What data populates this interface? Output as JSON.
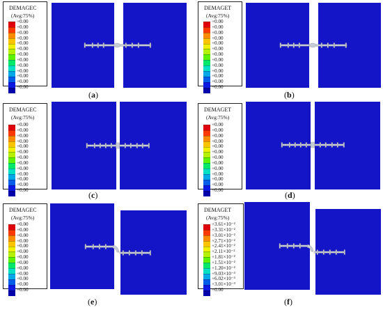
{
  "colors": {
    "mesh_blue": "#1515c8",
    "connector_gray": "#c8ccd6",
    "scale": [
      "#e0000b",
      "#ff3a00",
      "#ff8c00",
      "#ffc400",
      "#f0f000",
      "#b4f000",
      "#5cf200",
      "#00e86a",
      "#00e0c4",
      "#00a8e8",
      "#005ee8",
      "#0a18e4",
      "#0000a8"
    ]
  },
  "panels": [
    {
      "caption_label": "a",
      "legend_title": "DEMAGEC",
      "legend_sub": "(Avg:75%)",
      "legend_values": [
        "+0.00",
        "+0.00",
        "+0.00",
        "+0.00",
        "+0.00",
        "+0.00",
        "+0.00",
        "+0.00",
        "+0.00",
        "+0.00",
        "+0.00",
        "+0.00",
        "+0.00"
      ]
    },
    {
      "caption_label": "b",
      "legend_title": "DEMAGET",
      "legend_sub": "(Avg:75%)",
      "legend_values": [
        "+0.00",
        "+0.00",
        "+0.00",
        "+0.00",
        "+0.00",
        "+0.00",
        "+0.00",
        "+0.00",
        "+0.00",
        "+0.00",
        "+0.00",
        "+0.00",
        "+0.00"
      ]
    },
    {
      "caption_label": "c",
      "legend_title": "DEMAGEC",
      "legend_sub": "(Avg:75%)",
      "legend_values": [
        "+0.00",
        "+0.00",
        "+0.00",
        "+0.00",
        "+0.00",
        "+0.00",
        "+0.00",
        "+0.00",
        "+0.00",
        "+0.00",
        "+0.00",
        "+0.00",
        "+0.00"
      ]
    },
    {
      "caption_label": "d",
      "legend_title": "DEMAGET",
      "legend_sub": "(Avg:75%)",
      "legend_values": [
        "+0.00",
        "+0.00",
        "+0.00",
        "+0.00",
        "+0.00",
        "+0.00",
        "+0.00",
        "+0.00",
        "+0.00",
        "+0.00",
        "+0.00",
        "+0.00",
        "+0.00"
      ]
    },
    {
      "caption_label": "e",
      "legend_title": "DEMAGEC",
      "legend_sub": "(Avg:75%)",
      "legend_values": [
        "+0.00",
        "+0.00",
        "+0.00",
        "+0.00",
        "+0.00",
        "+0.00",
        "+0.00",
        "+0.00",
        "+0.00",
        "+0.00",
        "+0.00",
        "+0.00",
        "+0.00"
      ]
    },
    {
      "caption_label": "f",
      "legend_title": "DEMAGET",
      "legend_sub": "(Avg:75%)",
      "legend_values": [
        "+3.61×10⁻²",
        "+3.31×10⁻²",
        "+3.01×10⁻²",
        "+2.71×10⁻²",
        "+2.41×10⁻²",
        "+2.11×10⁻²",
        "+1.81×10⁻²",
        "+1.51×10⁻²",
        "+1.20×10⁻²",
        "+9.03×10⁻³",
        "+6.02×10⁻³",
        "+3.01×10⁻³",
        "+0.00"
      ]
    }
  ]
}
